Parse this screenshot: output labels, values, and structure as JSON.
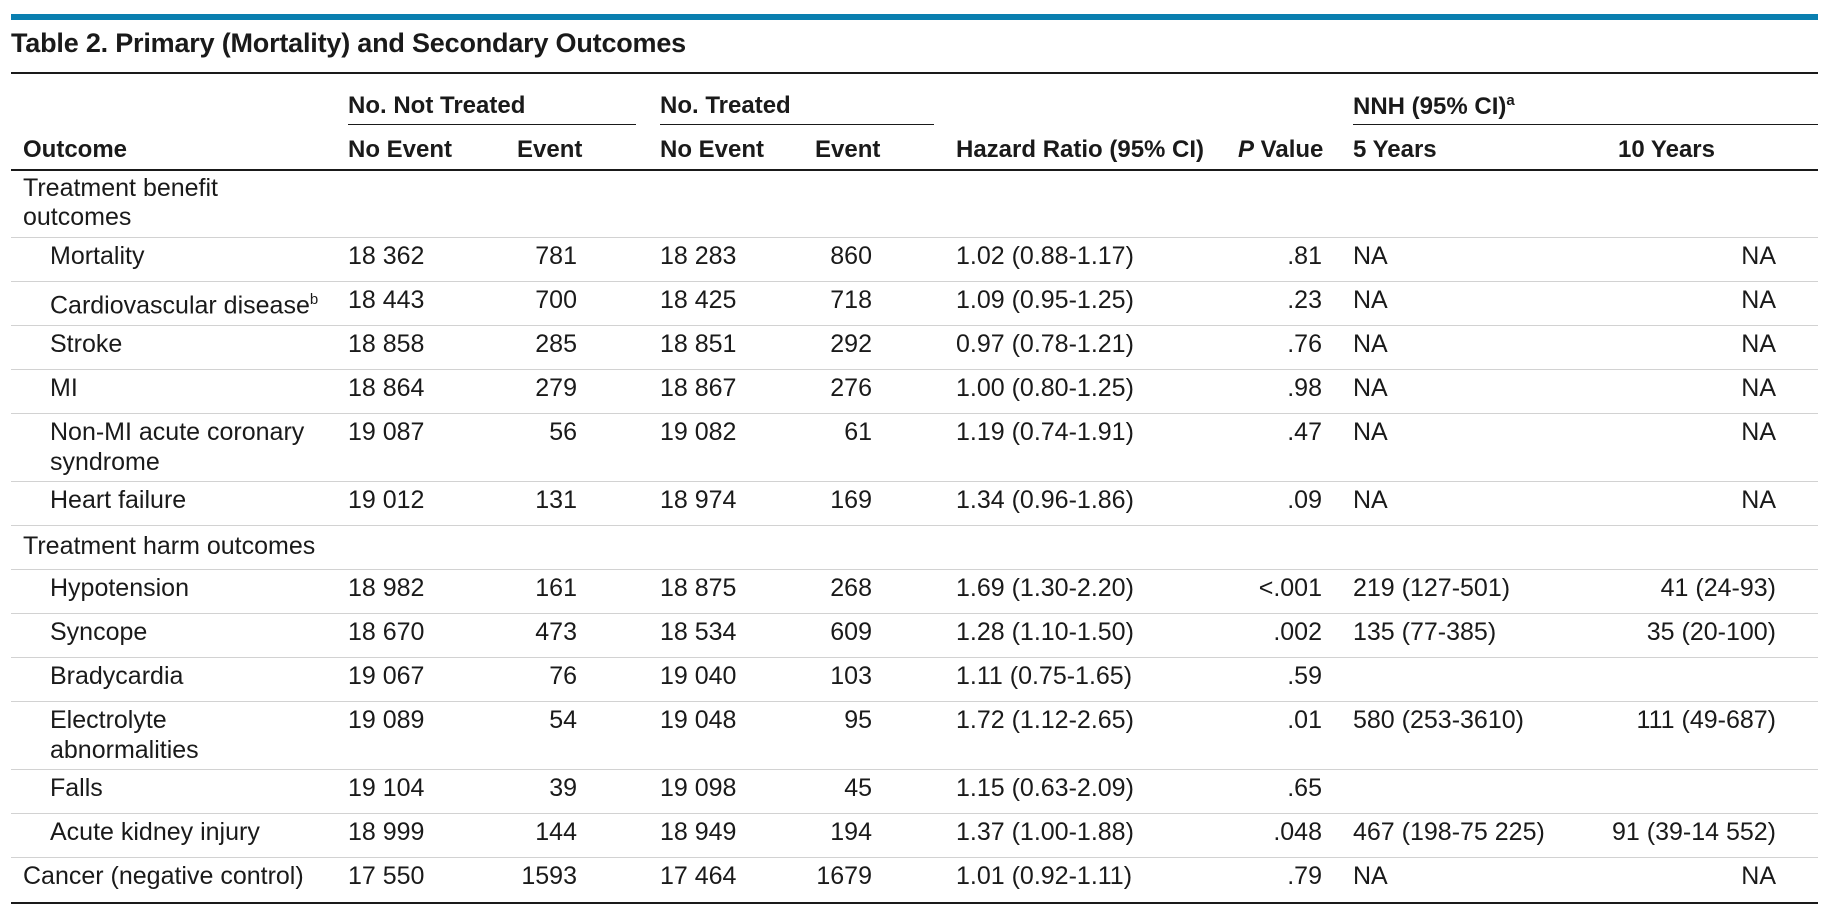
{
  "title": "Table 2. Primary (Mortality) and Secondary Outcomes",
  "accent_color": "#0a7fb0",
  "headers": {
    "group_not_treated": "No. Not Treated",
    "group_treated": "No. Treated",
    "group_nnh": "NNH (95% CI)",
    "group_nnh_sup": "a",
    "outcome": "Outcome",
    "no_event": "No Event",
    "event": "Event",
    "hazard_ratio": "Hazard Ratio (95% CI)",
    "p_italic": "P",
    "p_rest": " Value",
    "years5": "5 Years",
    "years10": "10 Years"
  },
  "sections": {
    "benefit_line1": "Treatment benefit",
    "benefit_line2": "outcomes",
    "harm": "Treatment harm outcomes"
  },
  "rows": [
    {
      "label": "Mortality",
      "sup": "",
      "label2": "",
      "nt_no": "18 362",
      "nt_ev": "781",
      "t_no": "18 283",
      "t_ev": "860",
      "hr": "1.02 (0.88-1.17)",
      "p": ".81",
      "nnh5": "NA",
      "nnh10": "NA"
    },
    {
      "label": "Cardiovascular disease",
      "sup": "b",
      "label2": "",
      "nt_no": "18 443",
      "nt_ev": "700",
      "t_no": "18 425",
      "t_ev": "718",
      "hr": "1.09 (0.95-1.25)",
      "p": ".23",
      "nnh5": "NA",
      "nnh10": "NA"
    },
    {
      "label": "Stroke",
      "sup": "",
      "label2": "",
      "nt_no": "18 858",
      "nt_ev": "285",
      "t_no": "18 851",
      "t_ev": "292",
      "hr": "0.97 (0.78-1.21)",
      "p": ".76",
      "nnh5": "NA",
      "nnh10": "NA"
    },
    {
      "label": "MI",
      "sup": "",
      "label2": "",
      "nt_no": "18 864",
      "nt_ev": "279",
      "t_no": "18 867",
      "t_ev": "276",
      "hr": "1.00 (0.80-1.25)",
      "p": ".98",
      "nnh5": "NA",
      "nnh10": "NA"
    },
    {
      "label": "Non-MI acute coronary",
      "sup": "",
      "label2": "syndrome",
      "nt_no": "19 087",
      "nt_ev": "56",
      "t_no": "19 082",
      "t_ev": "61",
      "hr": "1.19 (0.74-1.91)",
      "p": ".47",
      "nnh5": "NA",
      "nnh10": "NA"
    },
    {
      "label": "Heart failure",
      "sup": "",
      "label2": "",
      "nt_no": "19 012",
      "nt_ev": "131",
      "t_no": "18 974",
      "t_ev": "169",
      "hr": "1.34 (0.96-1.86)",
      "p": ".09",
      "nnh5": "NA",
      "nnh10": "NA"
    },
    {
      "label": "Hypotension",
      "sup": "",
      "label2": "",
      "nt_no": "18 982",
      "nt_ev": "161",
      "t_no": "18 875",
      "t_ev": "268",
      "hr": "1.69 (1.30-2.20)",
      "p": "<.001",
      "nnh5": "219 (127-501)",
      "nnh10": "41 (24-93)"
    },
    {
      "label": "Syncope",
      "sup": "",
      "label2": "",
      "nt_no": "18 670",
      "nt_ev": "473",
      "t_no": "18 534",
      "t_ev": "609",
      "hr": "1.28 (1.10-1.50)",
      "p": ".002",
      "nnh5": "135 (77-385)",
      "nnh10": "35 (20-100)"
    },
    {
      "label": "Bradycardia",
      "sup": "",
      "label2": "",
      "nt_no": "19 067",
      "nt_ev": "76",
      "t_no": "19 040",
      "t_ev": "103",
      "hr": "1.11 (0.75-1.65)",
      "p": ".59",
      "nnh5": "",
      "nnh10": ""
    },
    {
      "label": "Electrolyte",
      "sup": "",
      "label2": "abnormalities",
      "nt_no": "19 089",
      "nt_ev": "54",
      "t_no": "19 048",
      "t_ev": "95",
      "hr": "1.72 (1.12-2.65)",
      "p": ".01",
      "nnh5": "580 (253-3610)",
      "nnh10": "111 (49-687)"
    },
    {
      "label": "Falls",
      "sup": "",
      "label2": "",
      "nt_no": "19 104",
      "nt_ev": "39",
      "t_no": "19 098",
      "t_ev": "45",
      "hr": "1.15 (0.63-2.09)",
      "p": ".65",
      "nnh5": "",
      "nnh10": ""
    },
    {
      "label": "Acute kidney injury",
      "sup": "",
      "label2": "",
      "nt_no": "18 999",
      "nt_ev": "144",
      "t_no": "18 949",
      "t_ev": "194",
      "hr": "1.37 (1.00-1.88)",
      "p": ".048",
      "nnh5": "467 (198-75 225)",
      "nnh10": "91 (39-14 552)"
    },
    {
      "label": "Cancer (negative control)",
      "sup": "",
      "label2": "",
      "nt_no": "17 550",
      "nt_ev": "1593",
      "t_no": "17 464",
      "t_ev": "1679",
      "hr": "1.01 (0.92-1.11)",
      "p": ".79",
      "nnh5": "NA",
      "nnh10": "NA"
    }
  ]
}
